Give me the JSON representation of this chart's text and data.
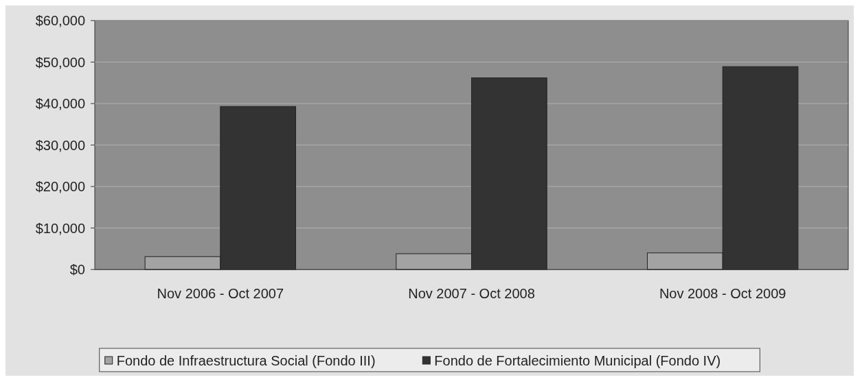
{
  "chart_data": {
    "type": "bar",
    "categories": [
      "Nov 2006 - Oct 2007",
      "Nov 2007 - Oct 2008",
      "Nov 2008 - Oct 2009"
    ],
    "series": [
      {
        "name": "Fondo de Infraestructura Social (Fondo III)",
        "color": "#a3a3a3",
        "values": [
          3100,
          3800,
          4000
        ]
      },
      {
        "name": "Fondo de Fortalecimiento Municipal (Fondo IV)",
        "color": "#333333",
        "values": [
          39300,
          46200,
          48900
        ]
      }
    ],
    "ylim": [
      0,
      60000
    ],
    "yticks": [
      {
        "value": 0,
        "label": "$0"
      },
      {
        "value": 10000,
        "label": "$10,000"
      },
      {
        "value": 20000,
        "label": "$20,000"
      },
      {
        "value": 30000,
        "label": "$30,000"
      },
      {
        "value": 40000,
        "label": "$40,000"
      },
      {
        "value": 50000,
        "label": "$50,000"
      },
      {
        "value": 60000,
        "label": "$60,000"
      }
    ],
    "grid": "y",
    "legend": "bottom"
  }
}
